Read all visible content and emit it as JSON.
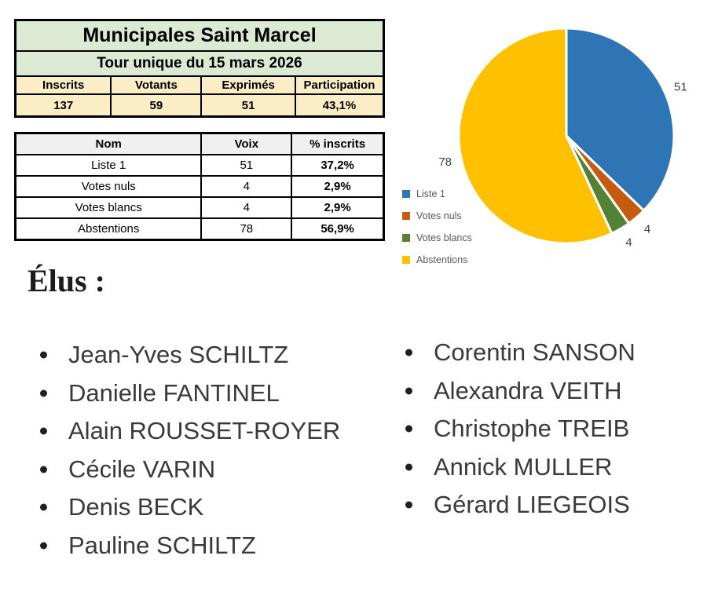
{
  "summary": {
    "title": "Municipales Saint Marcel",
    "subtitle": "Tour unique du 15 mars 2026",
    "headers": [
      "Inscrits",
      "Votants",
      "Exprimés",
      "Participation"
    ],
    "values": [
      "137",
      "59",
      "51",
      "43,1%"
    ]
  },
  "results": {
    "headers": [
      "Nom",
      "Voix",
      "% inscrits"
    ],
    "rows": [
      {
        "name": "Liste 1",
        "voix": "51",
        "pct": "37,2%"
      },
      {
        "name": "Votes nuls",
        "voix": "4",
        "pct": "2,9%"
      },
      {
        "name": "Votes blancs",
        "voix": "4",
        "pct": "2,9%"
      },
      {
        "name": "Abstentions",
        "voix": "78",
        "pct": "56,9%"
      }
    ]
  },
  "chart_data": {
    "type": "pie",
    "title": "",
    "categories": [
      "Liste 1",
      "Votes nuls",
      "Votes blancs",
      "Abstentions"
    ],
    "values": [
      51,
      4,
      4,
      78
    ],
    "total": 137,
    "data_labels": [
      "51",
      "4",
      "4",
      "78"
    ],
    "colors": [
      "#2e75b6",
      "#c55a11",
      "#548235",
      "#ffc000"
    ],
    "start_angle_deg": 0,
    "direction": "clockwise",
    "slice_border_color": "#ffffff",
    "label_color": "#404040",
    "legend_text_color": "#595959",
    "legend_position": "left-bottom"
  },
  "elus": {
    "heading": "Élus :",
    "left": [
      "Jean-Yves SCHILTZ",
      "Danielle FANTINEL",
      "Alain ROUSSET-ROYER",
      "Cécile VARIN",
      "Denis BECK",
      "Pauline SCHILTZ"
    ],
    "right": [
      "Corentin SANSON",
      "Alexandra VEITH",
      "Christophe TREIB",
      "Annick MULLER",
      "Gérard LIEGEOIS"
    ]
  }
}
